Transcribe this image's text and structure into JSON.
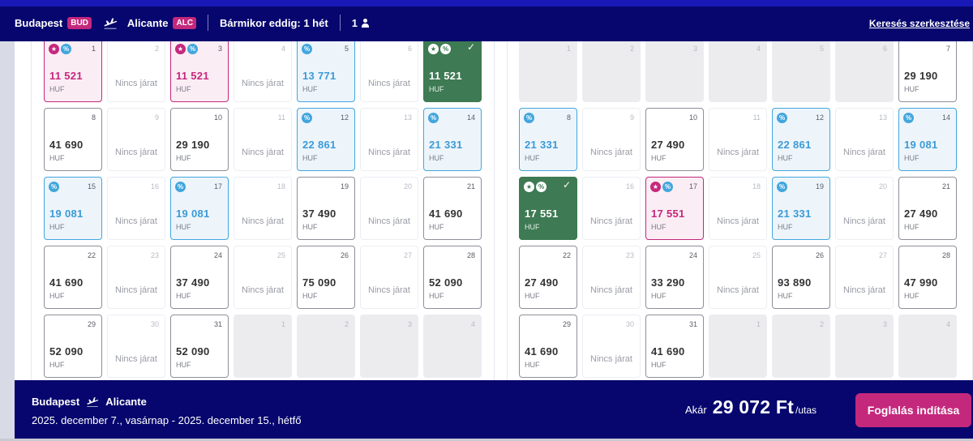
{
  "header": {
    "origin": "Budapest",
    "origin_code": "BUD",
    "destination": "Alicante",
    "destination_code": "ALC",
    "flexibility": "Bármikor eddig: 1 hét",
    "passengers": "1",
    "edit_search": "Keresés szerkesztése"
  },
  "labels": {
    "no_flight": "Nincs járat",
    "currency": "HUF"
  },
  "colors": {
    "navy": "#06066e",
    "brand_pink": "#c4287c",
    "discount_blue": "#42a6dd",
    "selected_green": "#3e7a53"
  },
  "months": [
    {
      "days": [
        {
          "n": "1",
          "type": "club",
          "price": "11 521",
          "icons": [
            "star",
            "pct"
          ]
        },
        {
          "n": "2",
          "type": "nofl"
        },
        {
          "n": "3",
          "type": "club",
          "price": "11 521",
          "icons": [
            "star",
            "pct"
          ]
        },
        {
          "n": "4",
          "type": "nofl"
        },
        {
          "n": "5",
          "type": "discount",
          "price": "13 771",
          "icons": [
            "pct"
          ]
        },
        {
          "n": "6",
          "type": "nofl"
        },
        {
          "n": "",
          "type": "selected",
          "price": "11 521",
          "icons": [
            "star",
            "pct"
          ],
          "checked": true
        },
        {
          "n": "8",
          "type": "normal",
          "price": "41 690"
        },
        {
          "n": "9",
          "type": "nofl"
        },
        {
          "n": "10",
          "type": "normal",
          "price": "29 190"
        },
        {
          "n": "11",
          "type": "nofl"
        },
        {
          "n": "12",
          "type": "discount",
          "price": "22 861",
          "icons": [
            "pct"
          ]
        },
        {
          "n": "13",
          "type": "nofl"
        },
        {
          "n": "14",
          "type": "discount",
          "price": "21 331",
          "icons": [
            "pct"
          ]
        },
        {
          "n": "15",
          "type": "discount",
          "price": "19 081",
          "icons": [
            "pct"
          ]
        },
        {
          "n": "16",
          "type": "nofl"
        },
        {
          "n": "17",
          "type": "discount",
          "price": "19 081",
          "icons": [
            "pct"
          ]
        },
        {
          "n": "18",
          "type": "nofl"
        },
        {
          "n": "19",
          "type": "normal",
          "price": "37 490"
        },
        {
          "n": "20",
          "type": "nofl"
        },
        {
          "n": "21",
          "type": "normal",
          "price": "41 690"
        },
        {
          "n": "22",
          "type": "normal",
          "price": "41 690"
        },
        {
          "n": "23",
          "type": "nofl"
        },
        {
          "n": "24",
          "type": "normal",
          "price": "37 490"
        },
        {
          "n": "25",
          "type": "nofl"
        },
        {
          "n": "26",
          "type": "normal",
          "price": "75 090"
        },
        {
          "n": "27",
          "type": "nofl"
        },
        {
          "n": "28",
          "type": "normal",
          "price": "52 090"
        },
        {
          "n": "29",
          "type": "normal",
          "price": "52 090"
        },
        {
          "n": "30",
          "type": "nofl"
        },
        {
          "n": "31",
          "type": "normal",
          "price": "52 090"
        },
        {
          "n": "1",
          "type": "empty"
        },
        {
          "n": "2",
          "type": "empty"
        },
        {
          "n": "3",
          "type": "empty"
        },
        {
          "n": "4",
          "type": "empty"
        }
      ]
    },
    {
      "days": [
        {
          "n": "1",
          "type": "empty"
        },
        {
          "n": "2",
          "type": "empty"
        },
        {
          "n": "3",
          "type": "empty"
        },
        {
          "n": "4",
          "type": "empty"
        },
        {
          "n": "5",
          "type": "empty"
        },
        {
          "n": "6",
          "type": "empty"
        },
        {
          "n": "7",
          "type": "normal",
          "price": "29 190"
        },
        {
          "n": "8",
          "type": "discount",
          "price": "21 331",
          "icons": [
            "pct"
          ]
        },
        {
          "n": "9",
          "type": "nofl"
        },
        {
          "n": "10",
          "type": "normal",
          "price": "27 490"
        },
        {
          "n": "11",
          "type": "nofl"
        },
        {
          "n": "12",
          "type": "discount",
          "price": "22 861",
          "icons": [
            "pct"
          ]
        },
        {
          "n": "13",
          "type": "nofl"
        },
        {
          "n": "14",
          "type": "discount",
          "price": "19 081",
          "icons": [
            "pct"
          ]
        },
        {
          "n": "",
          "type": "selected",
          "price": "17 551",
          "icons": [
            "star",
            "pct"
          ],
          "checked": true
        },
        {
          "n": "16",
          "type": "nofl"
        },
        {
          "n": "17",
          "type": "club",
          "price": "17 551",
          "icons": [
            "star",
            "pct"
          ]
        },
        {
          "n": "18",
          "type": "nofl"
        },
        {
          "n": "19",
          "type": "discount",
          "price": "21 331",
          "icons": [
            "pct"
          ]
        },
        {
          "n": "20",
          "type": "nofl"
        },
        {
          "n": "21",
          "type": "normal",
          "price": "27 490"
        },
        {
          "n": "22",
          "type": "normal",
          "price": "27 490"
        },
        {
          "n": "23",
          "type": "nofl"
        },
        {
          "n": "24",
          "type": "normal",
          "price": "33 290"
        },
        {
          "n": "25",
          "type": "nofl"
        },
        {
          "n": "26",
          "type": "normal",
          "price": "93 890"
        },
        {
          "n": "27",
          "type": "nofl"
        },
        {
          "n": "28",
          "type": "normal",
          "price": "47 990"
        },
        {
          "n": "29",
          "type": "normal",
          "price": "41 690"
        },
        {
          "n": "30",
          "type": "nofl"
        },
        {
          "n": "31",
          "type": "normal",
          "price": "41 690"
        },
        {
          "n": "1",
          "type": "empty"
        },
        {
          "n": "2",
          "type": "empty"
        },
        {
          "n": "3",
          "type": "empty"
        },
        {
          "n": "4",
          "type": "empty"
        }
      ]
    }
  ],
  "summary": {
    "origin": "Budapest",
    "destination": "Alicante",
    "dates": "2025. december 7., vasárnap - 2025. december 15., hétfő",
    "from_label": "Akár",
    "price": "29 072 Ft",
    "per_person": "/utas",
    "book_button": "Foglalás indítása"
  }
}
